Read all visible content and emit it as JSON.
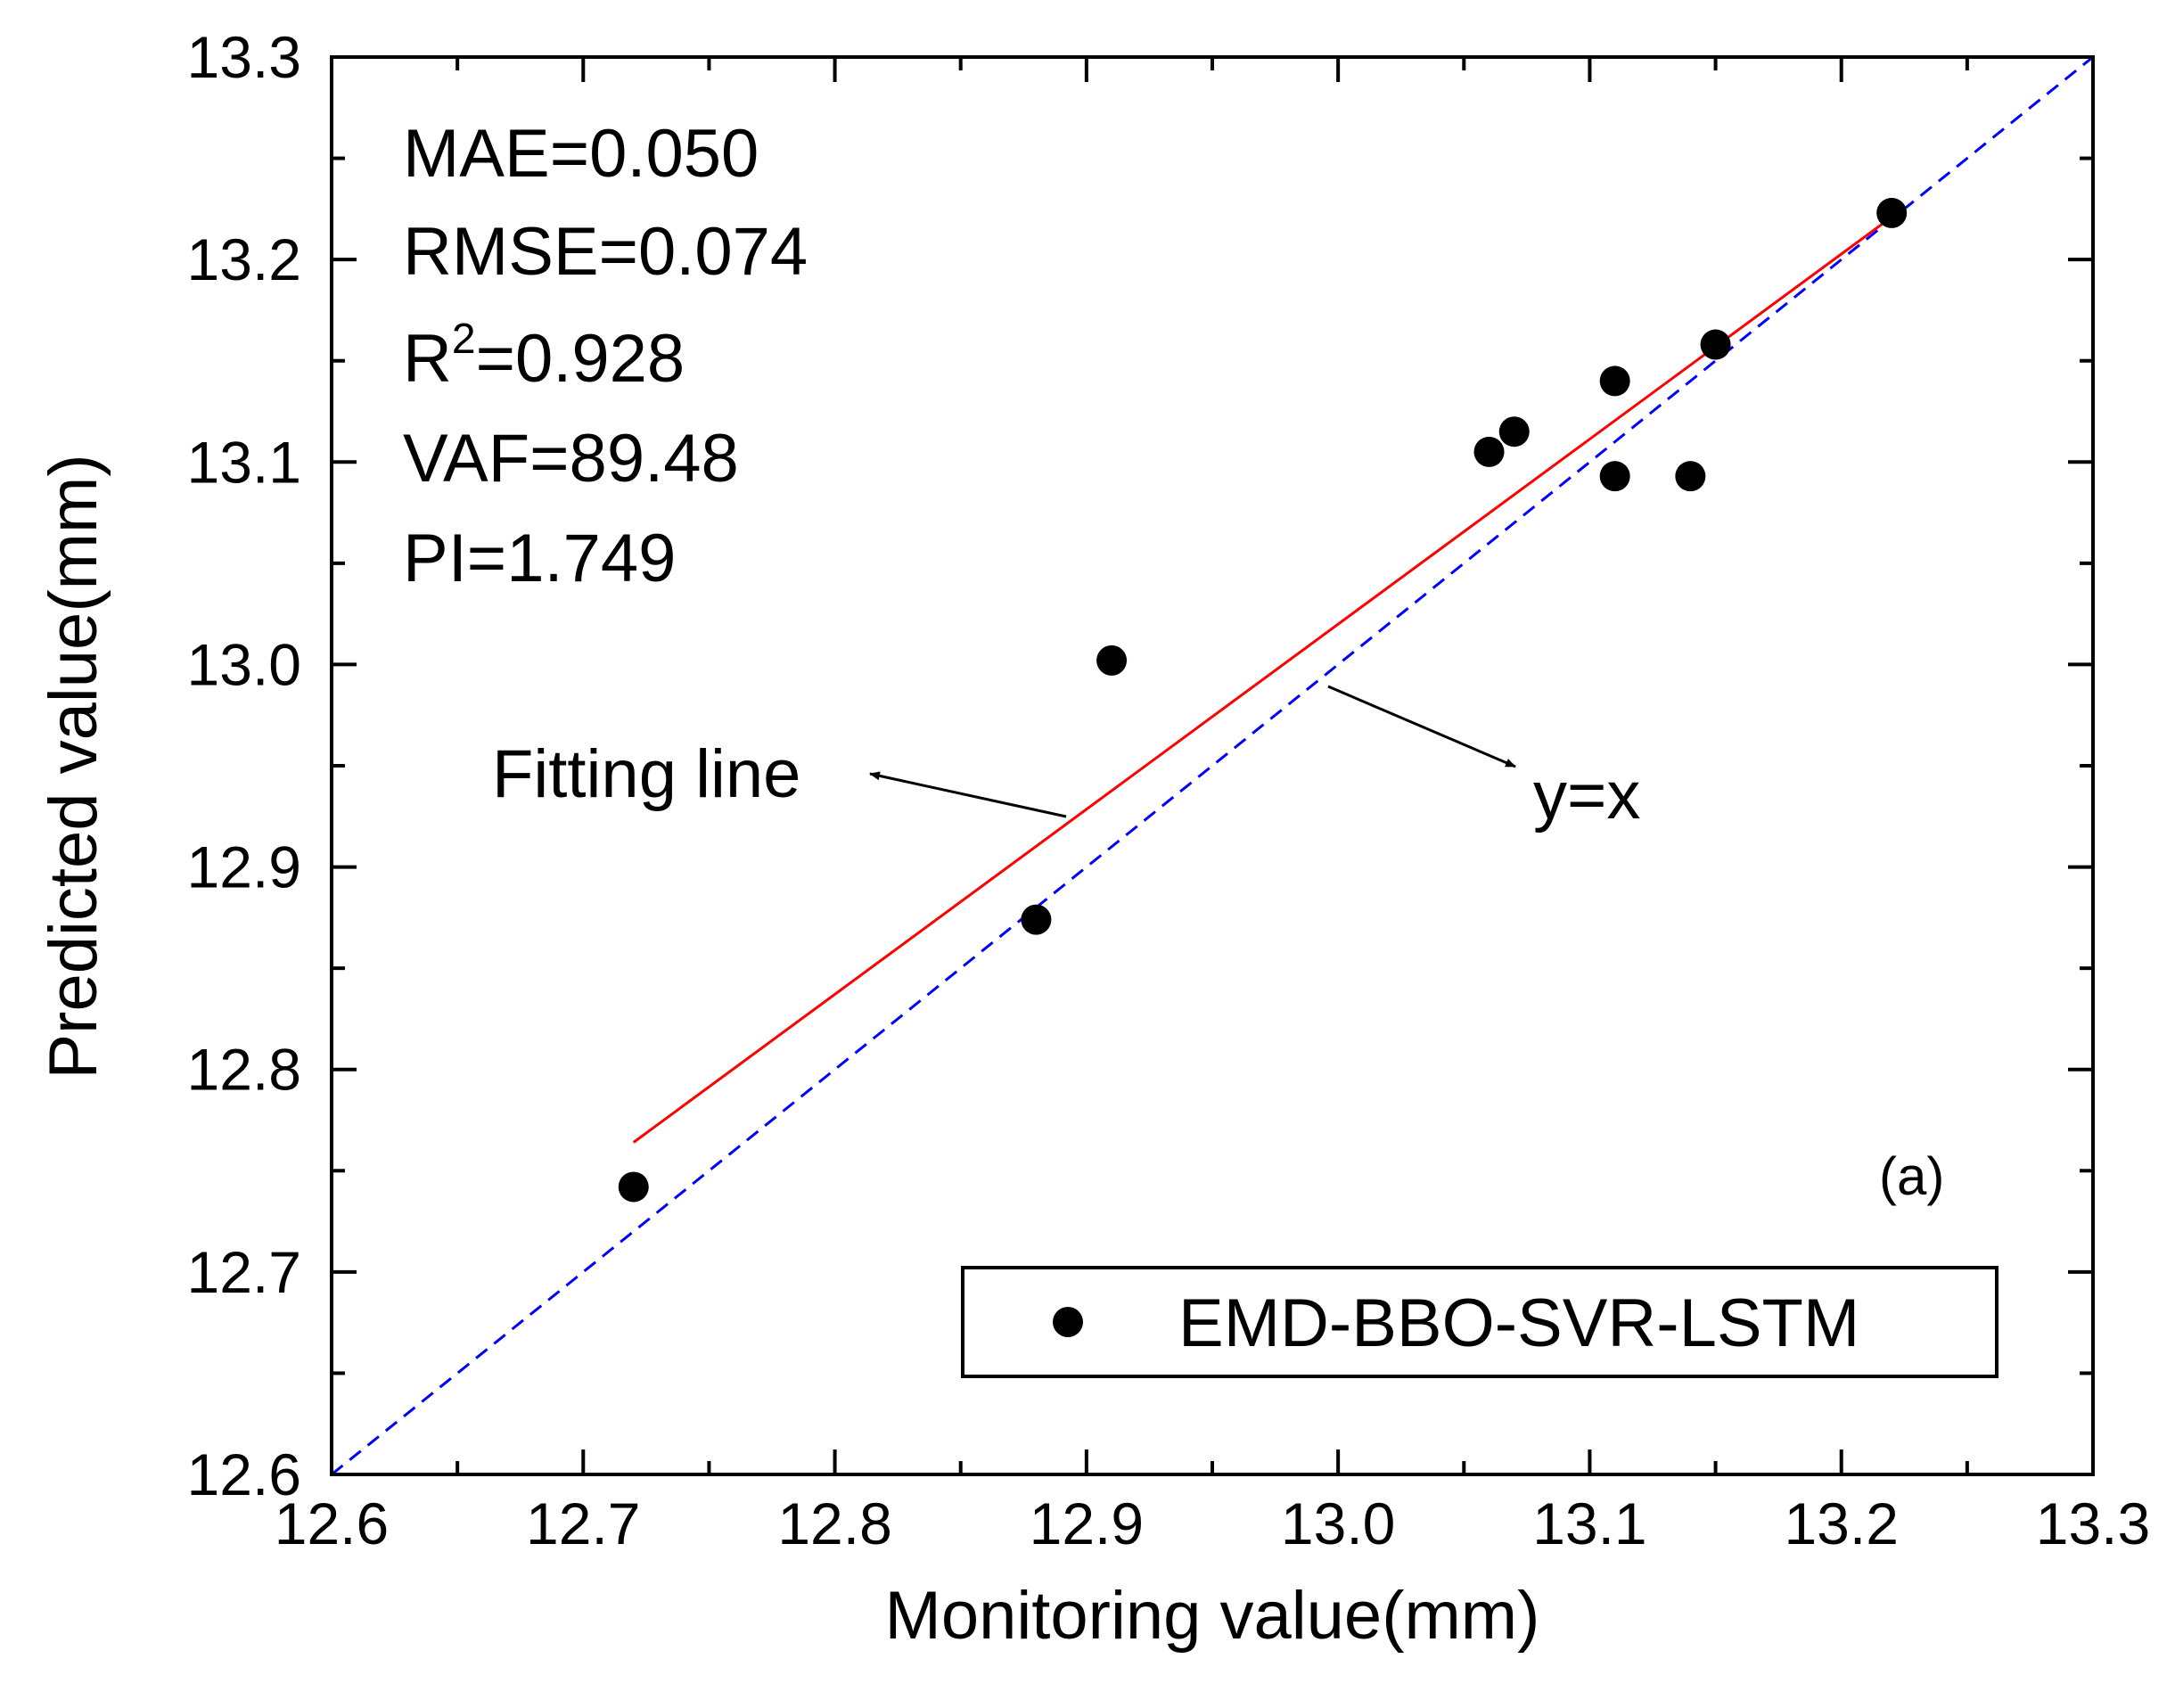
{
  "chart_data": {
    "type": "scatter",
    "title": "",
    "xlabel": "Monitoring value(mm)",
    "ylabel": "Predicted value(mm)",
    "xlim": [
      12.6,
      13.3
    ],
    "ylim": [
      12.6,
      13.3
    ],
    "xticks": [
      "12.6",
      "12.7",
      "12.8",
      "12.9",
      "13.0",
      "13.1",
      "13.2",
      "13.3"
    ],
    "yticks": [
      "12.6",
      "12.7",
      "12.8",
      "12.9",
      "13.0",
      "13.1",
      "13.2",
      "13.3"
    ],
    "series": [
      {
        "name": "EMD-BBO-SVR-LSTM",
        "color": "#000000",
        "x": [
          12.72,
          12.88,
          12.91,
          13.06,
          13.07,
          13.11,
          13.11,
          13.14,
          13.15,
          13.22
        ],
        "y": [
          12.742,
          12.874,
          13.002,
          13.105,
          13.115,
          13.14,
          13.093,
          13.093,
          13.158,
          13.223
        ]
      }
    ],
    "fit_line": {
      "label": "Fitting line",
      "color": "#ff0000",
      "x": [
        12.72,
        13.22
      ],
      "y": [
        12.764,
        13.221
      ]
    },
    "identity_line": {
      "label": "y=x",
      "color": "#0000ff",
      "x": [
        12.6,
        13.3
      ],
      "y": [
        12.6,
        13.3
      ]
    },
    "stats": [
      {
        "name": "MAE",
        "text": "MAE=0.050"
      },
      {
        "name": "RMSE",
        "text": "RMSE=0.074"
      },
      {
        "name": "R2",
        "base": "R",
        "sup": "2",
        "rest": "=0.928"
      },
      {
        "name": "VAF",
        "text": "VAF=89.48"
      },
      {
        "name": "PI",
        "text": "PI=1.749"
      }
    ],
    "panel_label": "(a)",
    "legend": {
      "position": "bottom-right",
      "entries": [
        "EMD-BBO-SVR-LSTM"
      ]
    }
  }
}
